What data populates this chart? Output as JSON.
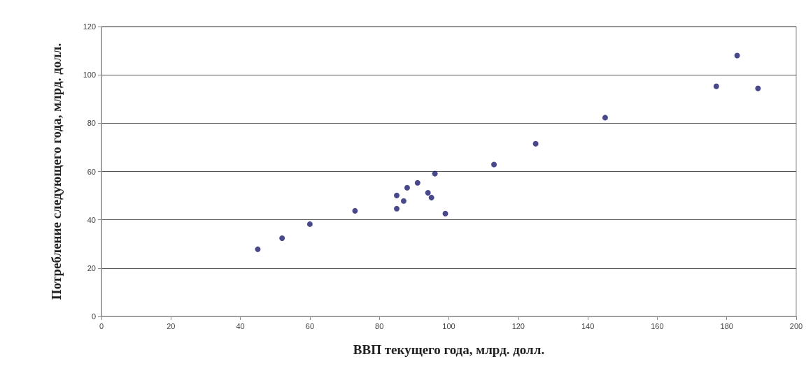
{
  "chart_data": {
    "type": "scatter",
    "xlabel": "ВВП текущего года, млрд. долл.",
    "ylabel": "Потребление следующего года, млрд. долл.",
    "x": [
      45,
      52,
      60,
      73,
      85,
      85,
      87,
      88,
      91,
      94,
      95,
      96,
      99,
      113,
      125,
      145,
      177,
      183,
      189
    ],
    "series": [
      {
        "color": "#1a1a6e",
        "values": [
          27.8,
          32.4,
          38.2,
          43.7,
          44.6,
          50.1,
          47.8,
          53.3,
          55.3,
          51.2,
          49.2,
          59.1,
          42.6,
          62.9,
          71.5,
          82.3,
          95.3,
          108,
          94.4
        ]
      }
    ],
    "xlim": [
      0,
      200
    ],
    "xticks": [
      0,
      20,
      40,
      60,
      80,
      100,
      120,
      140,
      160,
      180,
      200
    ],
    "ylim": [
      0,
      120
    ],
    "yticks": [
      0,
      20,
      40,
      60,
      80,
      100,
      120
    ],
    "grid": "y",
    "marker": "circle"
  }
}
